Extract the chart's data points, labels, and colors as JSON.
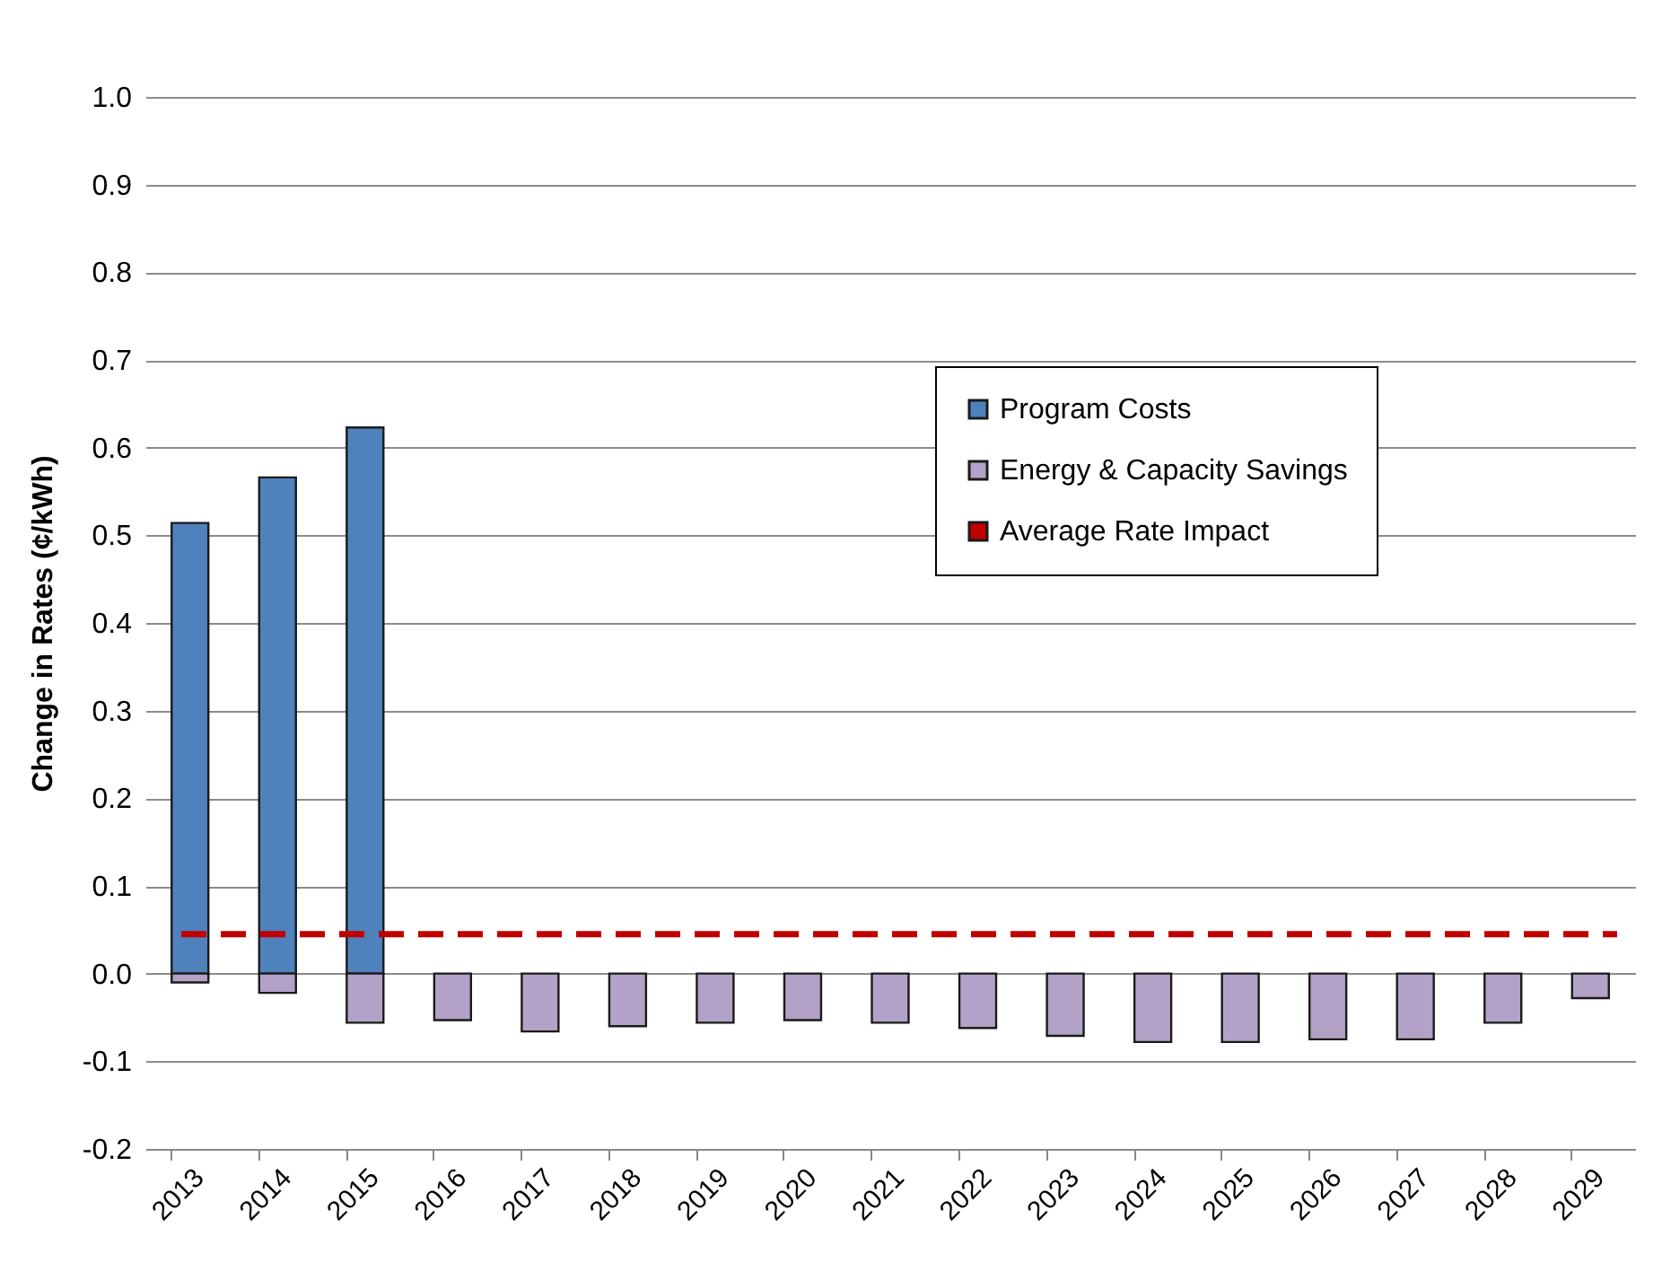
{
  "chart_data": {
    "type": "bar",
    "ylabel": "Change in Rates (¢/kWh)",
    "categories": [
      "2013",
      "2014",
      "2015",
      "2016",
      "2017",
      "2018",
      "2019",
      "2020",
      "2021",
      "2022",
      "2023",
      "2024",
      "2025",
      "2026",
      "2027",
      "2028",
      "2029"
    ],
    "series": [
      {
        "name": "Program Costs",
        "color": "#4f81bd",
        "values": [
          0.514,
          0.566,
          0.623,
          null,
          null,
          null,
          null,
          null,
          null,
          null,
          null,
          null,
          null,
          null,
          null,
          null,
          null
        ]
      },
      {
        "name": "Energy & Capacity Savings",
        "color": "#b3a2c7",
        "values": [
          -0.01,
          -0.022,
          -0.056,
          -0.053,
          -0.066,
          -0.06,
          -0.056,
          -0.053,
          -0.056,
          -0.062,
          -0.071,
          -0.078,
          -0.078,
          -0.075,
          -0.075,
          -0.056,
          -0.028
        ]
      }
    ],
    "stacked": true,
    "ref_lines": [
      {
        "axis": "y",
        "value": 0.045,
        "label": "Average Rate Impact",
        "color": "#c00000",
        "line_style": "dashed"
      }
    ],
    "ylim": [
      -0.2,
      1.0
    ],
    "yticks": [
      {
        "value": -0.2,
        "label": "-0.2"
      },
      {
        "value": -0.1,
        "label": "-0.1"
      },
      {
        "value": 0,
        "label": "0.0"
      },
      {
        "value": 0.1,
        "label": "0.1"
      },
      {
        "value": 0.2,
        "label": "0.2"
      },
      {
        "value": 0.3,
        "label": "0.3"
      },
      {
        "value": 0.4,
        "label": "0.4"
      },
      {
        "value": 0.5,
        "label": "0.5"
      },
      {
        "value": 0.6,
        "label": "0.6"
      },
      {
        "value": 0.7,
        "label": "0.7"
      },
      {
        "value": 0.8,
        "label": "0.8"
      },
      {
        "value": 0.9,
        "label": "0.9"
      },
      {
        "value": 1,
        "label": "1.0"
      }
    ],
    "grid": "y",
    "legend": "top right"
  }
}
